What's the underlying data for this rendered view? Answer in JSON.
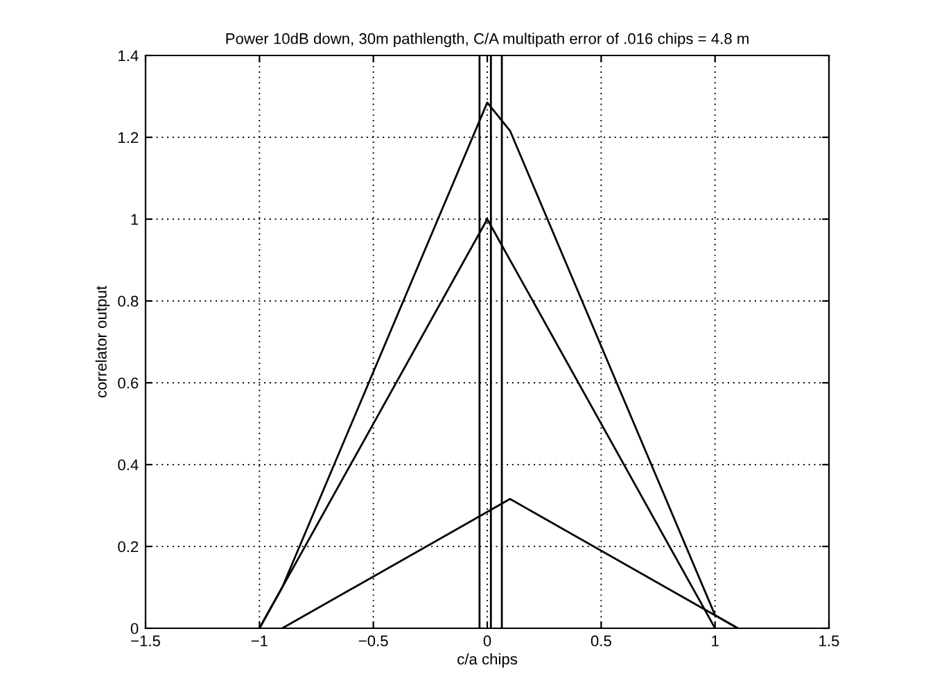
{
  "chart_data": {
    "type": "line",
    "title": "Power 10dB down, 30m pathlength, C/A multipath error of .016 chips = 4.8 m",
    "xlabel": "c/a chips",
    "ylabel": "correlator output",
    "series": [
      {
        "color": "#000000",
        "x": [
          -1,
          0,
          1
        ],
        "values": [
          0,
          1,
          0
        ]
      },
      {
        "color": "#000000",
        "x": [
          -0.9,
          0.1,
          1.1
        ],
        "values": [
          0,
          0.316,
          0
        ]
      },
      {
        "color": "#000000",
        "x": [
          -1,
          -0.9,
          0,
          0.1,
          1,
          1.1
        ],
        "values": [
          0,
          0.1,
          1.285,
          1.216,
          0.032,
          0
        ]
      }
    ],
    "ref_lines": [
      {
        "axis": "x",
        "value": -0.034,
        "color": "#000000"
      },
      {
        "axis": "x",
        "value": 0.016,
        "color": "#000000"
      },
      {
        "axis": "x",
        "value": 0.064,
        "color": "#000000"
      }
    ],
    "xlim": [
      -1.5,
      1.5
    ],
    "xticks": [
      {
        "value": -1.5,
        "label": "−1.5"
      },
      {
        "value": -1,
        "label": "−1"
      },
      {
        "value": -0.5,
        "label": "−0.5"
      },
      0,
      0.5,
      1,
      1.5
    ],
    "ylim": [
      0,
      1.4
    ],
    "yticks": [
      0,
      0.2,
      0.4,
      0.6,
      0.8,
      1,
      1.2,
      1.4
    ],
    "grid": true,
    "line_style": "solid",
    "marker": "none"
  }
}
